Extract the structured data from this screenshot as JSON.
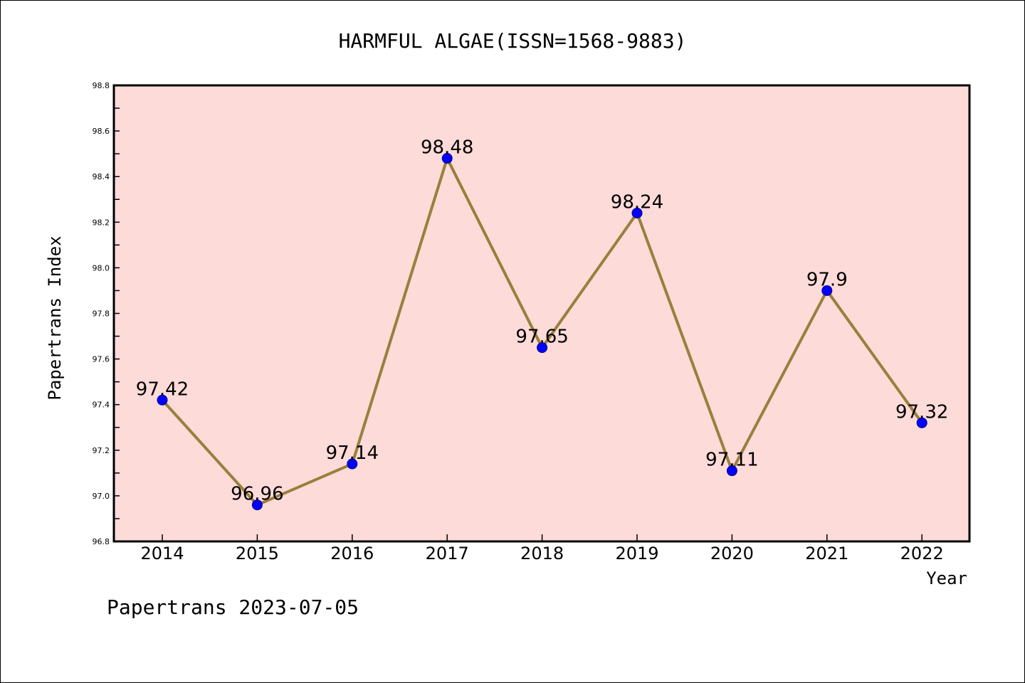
{
  "chart_data": {
    "type": "line",
    "title": "HARMFUL ALGAE(ISSN=1568-9883)",
    "xlabel": "Year",
    "ylabel": "Papertrans Index",
    "categories": [
      "2014",
      "2015",
      "2016",
      "2017",
      "2018",
      "2019",
      "2020",
      "2021",
      "2022"
    ],
    "series": [
      {
        "values": [
          97.42,
          96.96,
          97.14,
          98.48,
          97.65,
          98.24,
          97.11,
          97.9,
          97.32
        ],
        "labels": [
          "97.42",
          "96.96",
          "97.14",
          "98.48",
          "97.65",
          "98.24",
          "97.11",
          "97.9",
          "97.32"
        ]
      }
    ],
    "ylim": [
      96.8,
      98.8
    ],
    "yticks": [
      "96.8",
      "97.0",
      "97.2",
      "97.4",
      "97.6",
      "97.8",
      "98.0",
      "98.2",
      "98.4",
      "98.6",
      "98.8"
    ],
    "grid": false,
    "legend": "none"
  },
  "footer": "Papertrans 2023-07-05",
  "colors": {
    "plot_background": "#fddbd9",
    "line": "#9a7f3b",
    "marker": "#0000ff",
    "axis": "#000000"
  }
}
